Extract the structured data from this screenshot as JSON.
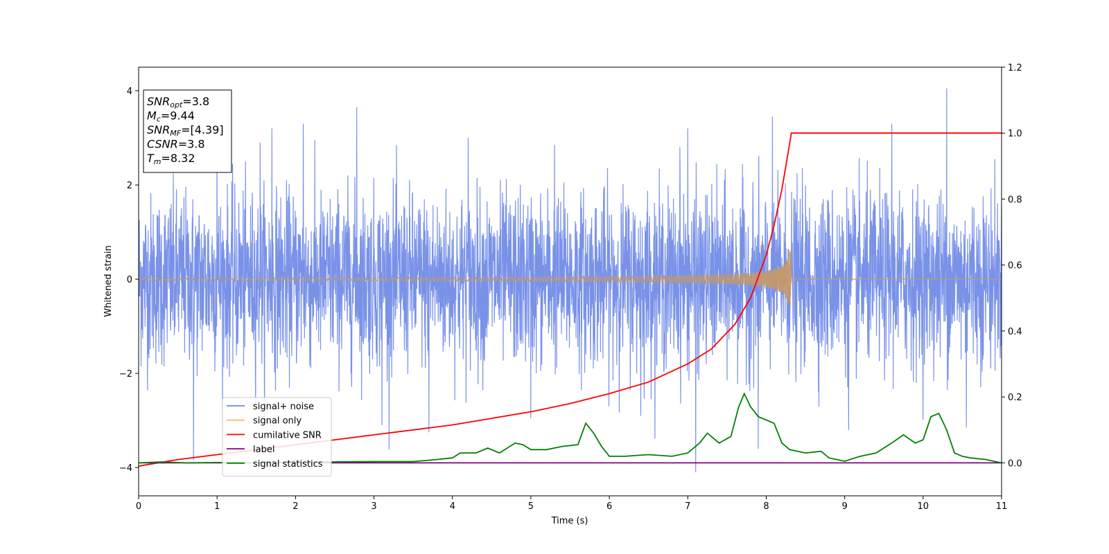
{
  "chart_data": {
    "type": "line",
    "title": "",
    "xlabel": "Time (s)",
    "ylabel": "Whitened strain",
    "y2label": "",
    "xlim": [
      0,
      11
    ],
    "ylim": [
      -4.6,
      4.5
    ],
    "y2lim": [
      -0.1,
      1.2
    ],
    "x_ticks": [
      0,
      1,
      2,
      3,
      4,
      5,
      6,
      7,
      8,
      9,
      10,
      11
    ],
    "y_ticks": [
      -4,
      -2,
      0,
      2,
      4
    ],
    "y2_ticks": [
      0.0,
      0.2,
      0.4,
      0.6,
      0.8,
      1.0,
      1.2
    ],
    "grid": false,
    "legend_position": "lower-left",
    "info_box": {
      "lines": [
        {
          "main": "SNR",
          "sub": "opt",
          "rest": "=3.8"
        },
        {
          "main": "M",
          "sub": "c",
          "rest": "=9.44"
        },
        {
          "main": "SNR",
          "sub": "MF",
          "rest": "=[4.39]"
        },
        {
          "main": "CSNR",
          "sub": "",
          "rest": "=3.8"
        },
        {
          "main": "T",
          "sub": "m",
          "rest": "=8.32"
        }
      ]
    },
    "series": [
      {
        "name": "signal+ noise",
        "axis": "left",
        "color": "#6a86e6",
        "kind": "noise",
        "envelope_sigma": 0.9,
        "peaks": [
          {
            "x": 0.7,
            "y": -3.85
          },
          {
            "x": 1.55,
            "y": 2.9
          },
          {
            "x": 1.7,
            "y": 3.2
          },
          {
            "x": 2.1,
            "y": 3.3
          },
          {
            "x": 2.78,
            "y": 3.65
          },
          {
            "x": 3.1,
            "y": -3.1
          },
          {
            "x": 3.7,
            "y": -3.25
          },
          {
            "x": 5.0,
            "y": -2.95
          },
          {
            "x": 5.3,
            "y": 2.85
          },
          {
            "x": 6.9,
            "y": 2.8
          },
          {
            "x": 7.0,
            "y": 3.2
          },
          {
            "x": 7.1,
            "y": -4.15
          },
          {
            "x": 7.9,
            "y": -3.6
          },
          {
            "x": 8.08,
            "y": 3.45
          },
          {
            "x": 9.6,
            "y": 3.3
          },
          {
            "x": 10.3,
            "y": 4.1
          },
          {
            "x": 10.55,
            "y": -3.15
          },
          {
            "x": 9.05,
            "y": -3.2
          },
          {
            "x": 1.0,
            "y": 3.0
          },
          {
            "x": 4.2,
            "y": 3.0
          },
          {
            "x": 6.4,
            "y": -2.9
          }
        ]
      },
      {
        "name": "signal only",
        "axis": "left",
        "color": "#f5c16c",
        "kind": "chirp",
        "merger_time": 8.32,
        "merger_amplitude": 0.65
      },
      {
        "name": "cumilative SNR",
        "axis": "right",
        "color": "#ff0000",
        "x": [
          0,
          0.5,
          1,
          1.5,
          2,
          2.5,
          3,
          3.5,
          4,
          4.5,
          5,
          5.5,
          6,
          6.5,
          7,
          7.3,
          7.6,
          7.8,
          8.0,
          8.1,
          8.2,
          8.25,
          8.3,
          8.32,
          8.5,
          9,
          10,
          11
        ],
        "y": [
          -0.01,
          0.01,
          0.025,
          0.04,
          0.055,
          0.07,
          0.085,
          0.1,
          0.115,
          0.135,
          0.155,
          0.18,
          0.21,
          0.245,
          0.3,
          0.345,
          0.42,
          0.5,
          0.63,
          0.72,
          0.83,
          0.9,
          0.97,
          1.0,
          1.0,
          1.0,
          1.0,
          1.0
        ]
      },
      {
        "name": "label",
        "axis": "right",
        "color": "#800080",
        "x": [
          0,
          11
        ],
        "y": [
          0.0,
          0.0
        ]
      },
      {
        "name": "signal statistics",
        "axis": "right",
        "color": "#008000",
        "x": [
          0,
          0.3,
          0.6,
          1,
          1.5,
          2,
          2.5,
          3,
          3.5,
          3.8,
          4.0,
          4.1,
          4.3,
          4.45,
          4.6,
          4.8,
          4.9,
          5.0,
          5.2,
          5.4,
          5.6,
          5.7,
          5.8,
          5.9,
          6.0,
          6.2,
          6.5,
          6.8,
          7.0,
          7.15,
          7.25,
          7.4,
          7.55,
          7.65,
          7.72,
          7.8,
          7.9,
          8.0,
          8.1,
          8.2,
          8.3,
          8.5,
          8.7,
          8.8,
          9.0,
          9.2,
          9.4,
          9.6,
          9.75,
          9.9,
          10.0,
          10.1,
          10.2,
          10.3,
          10.4,
          10.5,
          10.6,
          10.8,
          11.0
        ],
        "y": [
          0.0,
          0.003,
          0.0,
          0.001,
          0.0,
          0.002,
          0.003,
          0.004,
          0.004,
          0.01,
          0.015,
          0.03,
          0.03,
          0.045,
          0.03,
          0.06,
          0.055,
          0.04,
          0.04,
          0.05,
          0.055,
          0.12,
          0.09,
          0.05,
          0.02,
          0.02,
          0.025,
          0.02,
          0.03,
          0.06,
          0.09,
          0.06,
          0.08,
          0.17,
          0.21,
          0.17,
          0.14,
          0.13,
          0.12,
          0.06,
          0.04,
          0.03,
          0.035,
          0.015,
          0.005,
          0.02,
          0.03,
          0.06,
          0.085,
          0.06,
          0.07,
          0.14,
          0.15,
          0.1,
          0.03,
          0.02,
          0.015,
          0.01,
          0.0
        ]
      }
    ]
  }
}
